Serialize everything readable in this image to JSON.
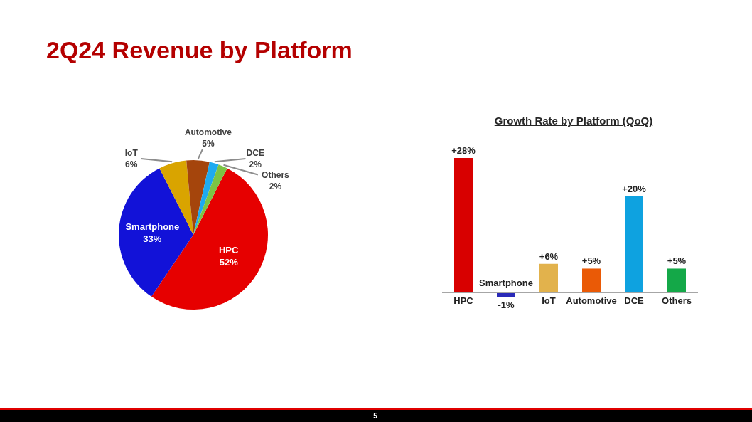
{
  "chart_data": [
    {
      "type": "pie",
      "title": "2Q24 Revenue by Platform",
      "categories": [
        "HPC",
        "Smartphone",
        "IoT",
        "Automotive",
        "DCE",
        "Others"
      ],
      "values": [
        52,
        33,
        6,
        5,
        2,
        2
      ],
      "colors": [
        "#e60000",
        "#1212d8",
        "#d9a400",
        "#a5450c",
        "#1eaaf0",
        "#7cc444"
      ],
      "value_labels": [
        "52%",
        "33%",
        "6%",
        "5%",
        "2%",
        "2%"
      ],
      "annotations": [
        "5"
      ]
    },
    {
      "type": "bar",
      "title": "Growth Rate by Platform (QoQ)",
      "categories": [
        "HPC",
        "Smartphone",
        "IoT",
        "Automotive",
        "DCE",
        "Others"
      ],
      "values": [
        28,
        -1,
        6,
        5,
        20,
        5
      ],
      "colors": [
        "#d80000",
        "#2a2ab8",
        "#e2b24c",
        "#ea5a06",
        "#0ea2e0",
        "#14a848"
      ],
      "value_labels": [
        "+28%",
        "-1%",
        "+6%",
        "+5%",
        "+20%",
        "+5%"
      ],
      "tick_labels": "x"
    }
  ]
}
